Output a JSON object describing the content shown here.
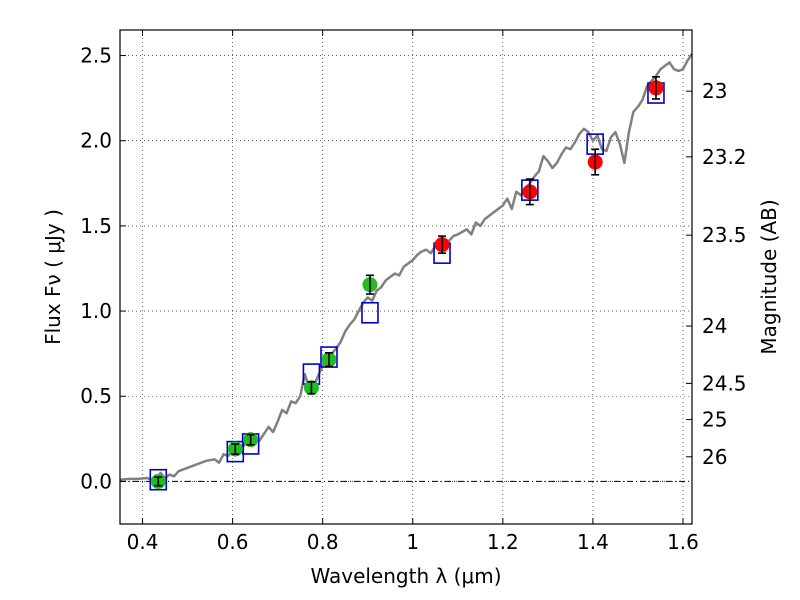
{
  "chart_data": {
    "type": "scatter",
    "xlabel": "Wavelength  λ (μm)",
    "ylabel": "Flux  Fν  ( μJy )",
    "ylabel_right": "Magnitude (AB)",
    "xlim": [
      0.35,
      1.62
    ],
    "ylim": [
      -0.25,
      2.65
    ],
    "grid": true,
    "x_ticks": [
      {
        "value": 0.4,
        "label": "0.4"
      },
      {
        "value": 0.6,
        "label": "0.6"
      },
      {
        "value": 0.8,
        "label": "0.8"
      },
      {
        "value": 1.0,
        "label": "1"
      },
      {
        "value": 1.2,
        "label": "1.2"
      },
      {
        "value": 1.4,
        "label": "1.4"
      },
      {
        "value": 1.6,
        "label": "1.6"
      }
    ],
    "y_ticks": [
      {
        "value": 0.0,
        "label": "0.0"
      },
      {
        "value": 0.5,
        "label": "0.5"
      },
      {
        "value": 1.0,
        "label": "1.0"
      },
      {
        "value": 1.5,
        "label": "1.5"
      },
      {
        "value": 2.0,
        "label": "2.0"
      },
      {
        "value": 2.5,
        "label": "2.5"
      }
    ],
    "magnitude_ticks": [
      {
        "value": 23.0,
        "label": "23"
      },
      {
        "value": 23.2,
        "label": "23.2"
      },
      {
        "value": 23.5,
        "label": "23.5"
      },
      {
        "value": 24.0,
        "label": "24"
      },
      {
        "value": 24.5,
        "label": "24.5"
      },
      {
        "value": 25.0,
        "label": "25"
      },
      {
        "value": 26.0,
        "label": "26"
      }
    ],
    "colors": {
      "model": "#808080",
      "model_photometry": "#0000cc",
      "optical": "#22bb22",
      "nir": "#ff0000",
      "errorbar": "#000000"
    },
    "model_spectrum": [
      [
        0.35,
        0.01
      ],
      [
        0.37,
        0.015
      ],
      [
        0.39,
        0.015
      ],
      [
        0.41,
        0.02
      ],
      [
        0.43,
        0.0
      ],
      [
        0.44,
        0.05
      ],
      [
        0.45,
        0.02
      ],
      [
        0.46,
        0.04
      ],
      [
        0.47,
        0.03
      ],
      [
        0.48,
        0.06
      ],
      [
        0.5,
        0.08
      ],
      [
        0.52,
        0.1
      ],
      [
        0.54,
        0.12
      ],
      [
        0.56,
        0.13
      ],
      [
        0.57,
        0.11
      ],
      [
        0.58,
        0.16
      ],
      [
        0.59,
        0.15
      ],
      [
        0.6,
        0.18
      ],
      [
        0.61,
        0.2
      ],
      [
        0.62,
        0.19
      ],
      [
        0.63,
        0.23
      ],
      [
        0.64,
        0.25
      ],
      [
        0.65,
        0.26
      ],
      [
        0.66,
        0.24
      ],
      [
        0.67,
        0.28
      ],
      [
        0.68,
        0.32
      ],
      [
        0.69,
        0.29
      ],
      [
        0.7,
        0.35
      ],
      [
        0.71,
        0.42
      ],
      [
        0.72,
        0.4
      ],
      [
        0.73,
        0.47
      ],
      [
        0.74,
        0.46
      ],
      [
        0.75,
        0.5
      ],
      [
        0.76,
        0.63
      ],
      [
        0.77,
        0.55
      ],
      [
        0.78,
        0.56
      ],
      [
        0.79,
        0.62
      ],
      [
        0.8,
        0.68
      ],
      [
        0.81,
        0.72
      ],
      [
        0.82,
        0.75
      ],
      [
        0.83,
        0.78
      ],
      [
        0.84,
        0.82
      ],
      [
        0.85,
        0.88
      ],
      [
        0.86,
        0.92
      ],
      [
        0.87,
        0.95
      ],
      [
        0.88,
        1.0
      ],
      [
        0.89,
        1.05
      ],
      [
        0.9,
        1.08
      ],
      [
        0.91,
        1.06
      ],
      [
        0.92,
        1.12
      ],
      [
        0.93,
        1.14
      ],
      [
        0.94,
        1.18
      ],
      [
        0.95,
        1.2
      ],
      [
        0.96,
        1.22
      ],
      [
        0.97,
        1.21
      ],
      [
        0.98,
        1.26
      ],
      [
        0.99,
        1.28
      ],
      [
        1.0,
        1.3
      ],
      [
        1.01,
        1.33
      ],
      [
        1.02,
        1.35
      ],
      [
        1.03,
        1.36
      ],
      [
        1.04,
        1.34
      ],
      [
        1.05,
        1.38
      ],
      [
        1.06,
        1.4
      ],
      [
        1.07,
        1.42
      ],
      [
        1.08,
        1.41
      ],
      [
        1.09,
        1.44
      ],
      [
        1.1,
        1.45
      ],
      [
        1.12,
        1.48
      ],
      [
        1.13,
        1.45
      ],
      [
        1.14,
        1.52
      ],
      [
        1.15,
        1.5
      ],
      [
        1.16,
        1.54
      ],
      [
        1.18,
        1.58
      ],
      [
        1.2,
        1.62
      ],
      [
        1.21,
        1.66
      ],
      [
        1.22,
        1.6
      ],
      [
        1.23,
        1.7
      ],
      [
        1.24,
        1.68
      ],
      [
        1.25,
        1.72
      ],
      [
        1.26,
        1.75
      ],
      [
        1.27,
        1.79
      ],
      [
        1.28,
        1.82
      ],
      [
        1.29,
        1.91
      ],
      [
        1.3,
        1.88
      ],
      [
        1.31,
        1.84
      ],
      [
        1.32,
        1.87
      ],
      [
        1.33,
        1.92
      ],
      [
        1.34,
        1.96
      ],
      [
        1.35,
        1.95
      ],
      [
        1.36,
        1.99
      ],
      [
        1.37,
        2.04
      ],
      [
        1.38,
        2.07
      ],
      [
        1.39,
        2.05
      ],
      [
        1.4,
        2.0
      ],
      [
        1.41,
        2.03
      ],
      [
        1.42,
        1.95
      ],
      [
        1.43,
        1.94
      ],
      [
        1.44,
        2.02
      ],
      [
        1.45,
        2.05
      ],
      [
        1.46,
        1.98
      ],
      [
        1.47,
        1.87
      ],
      [
        1.48,
        2.05
      ],
      [
        1.49,
        2.17
      ],
      [
        1.5,
        2.2
      ],
      [
        1.51,
        2.24
      ],
      [
        1.52,
        2.32
      ],
      [
        1.53,
        2.35
      ],
      [
        1.54,
        2.38
      ],
      [
        1.55,
        2.42
      ],
      [
        1.56,
        2.44
      ],
      [
        1.57,
        2.46
      ],
      [
        1.58,
        2.42
      ],
      [
        1.59,
        2.41
      ],
      [
        1.6,
        2.42
      ],
      [
        1.61,
        2.47
      ],
      [
        1.62,
        2.51
      ]
    ],
    "model_photometry": [
      {
        "x": 0.435,
        "y": 0.01
      },
      {
        "x": 0.606,
        "y": 0.175
      },
      {
        "x": 0.64,
        "y": 0.22
      },
      {
        "x": 0.775,
        "y": 0.63
      },
      {
        "x": 0.814,
        "y": 0.73
      },
      {
        "x": 0.905,
        "y": 0.99
      },
      {
        "x": 1.065,
        "y": 1.34
      },
      {
        "x": 1.26,
        "y": 1.71
      },
      {
        "x": 1.405,
        "y": 1.98
      },
      {
        "x": 1.54,
        "y": 2.28
      }
    ],
    "observed_optical": [
      {
        "x": 0.435,
        "y": 0.0,
        "err": 0.025
      },
      {
        "x": 0.606,
        "y": 0.19,
        "err": 0.03
      },
      {
        "x": 0.64,
        "y": 0.245,
        "err": 0.03
      },
      {
        "x": 0.775,
        "y": 0.55,
        "err": 0.035
      },
      {
        "x": 0.814,
        "y": 0.715,
        "err": 0.04
      },
      {
        "x": 0.905,
        "y": 1.155,
        "err": 0.055
      }
    ],
    "observed_nir": [
      {
        "x": 1.065,
        "y": 1.39,
        "err": 0.05
      },
      {
        "x": 1.26,
        "y": 1.7,
        "err": 0.075
      },
      {
        "x": 1.405,
        "y": 1.875,
        "err": 0.075
      },
      {
        "x": 1.54,
        "y": 2.31,
        "err": 0.065
      }
    ]
  }
}
